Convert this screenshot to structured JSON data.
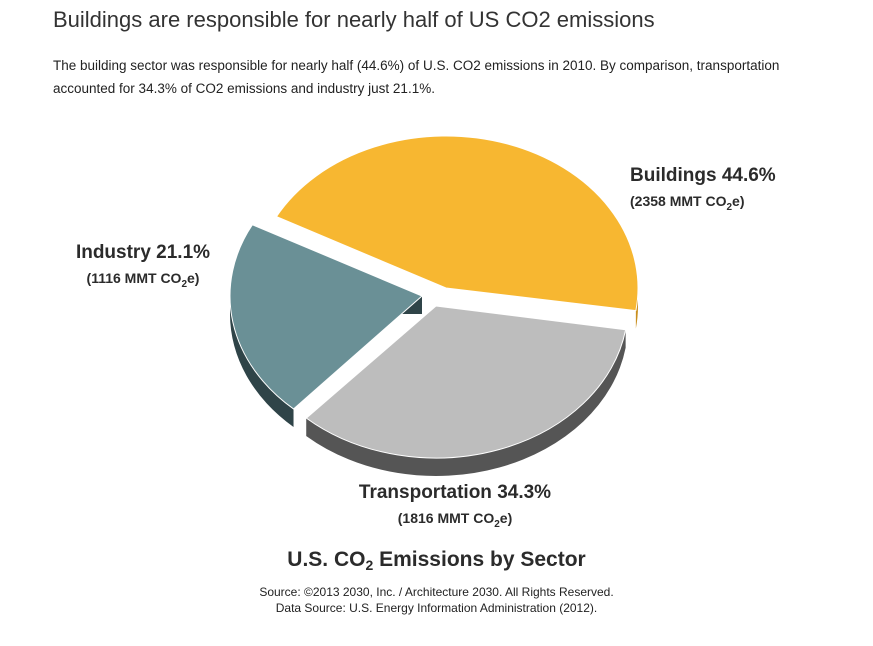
{
  "page": {
    "headline": "Buildings are responsible for nearly half of US CO2 emissions",
    "intro": "The building sector was responsible for nearly half (44.6%) of U.S. CO2 emissions in 2010. By comparison, transportation accounted for 34.3% of CO2 emissions and industry just 21.1%."
  },
  "chart_data": {
    "type": "pie",
    "title_main": "U.S. CO",
    "title_sub": "2",
    "title_rest": " Emissions by Sector",
    "source_line1": "Source: ©2013 2030, Inc. / Architecture 2030. All Rights Reserved.",
    "source_line2": "Data Source: U.S. Energy Information Administration (2012).",
    "unit_prefix": "MMT CO",
    "unit_sub": "2",
    "unit_suffix": "e",
    "slices": [
      {
        "label": "Buildings",
        "percent": 44.6,
        "percent_text": "44.6%",
        "value": 2358,
        "color": "#F7B731",
        "side_color": "#C98F1E"
      },
      {
        "label": "Transportation",
        "percent": 34.3,
        "percent_text": "34.3%",
        "value": 1816,
        "color": "#BDBDBD",
        "side_color": "#555555"
      },
      {
        "label": "Industry",
        "percent": 21.1,
        "percent_text": "21.1%",
        "value": 1116,
        "color": "#6A9096",
        "side_color": "#2F4448"
      }
    ]
  }
}
